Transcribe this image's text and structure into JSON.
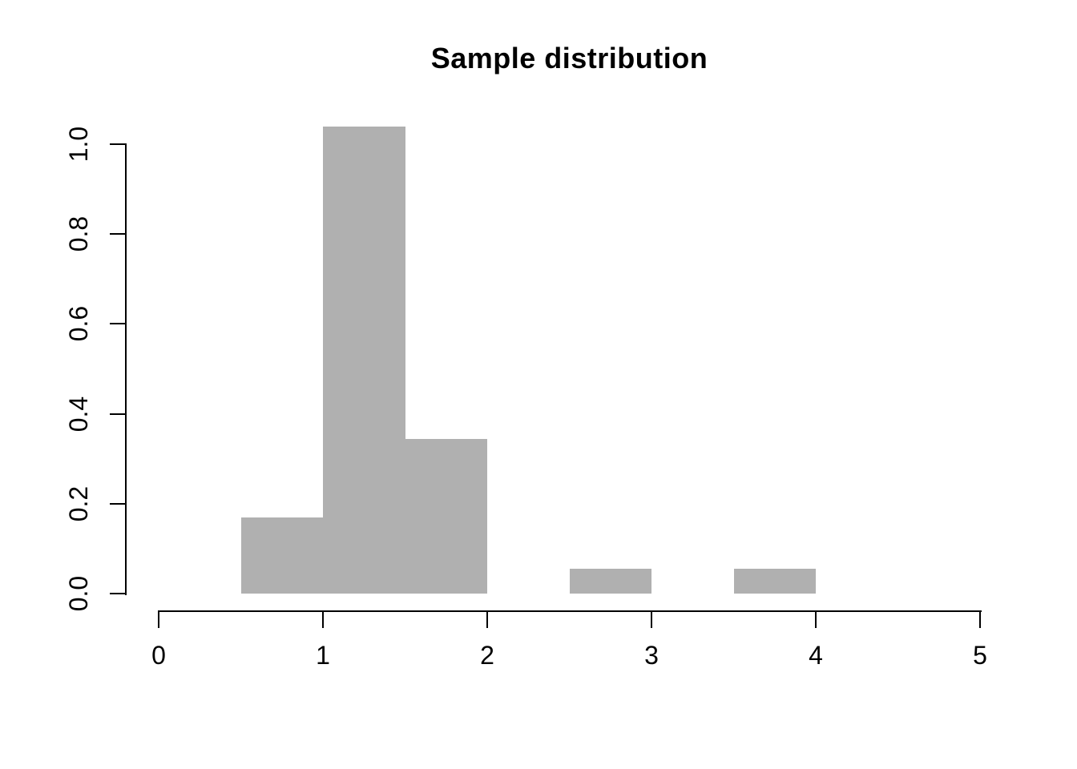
{
  "title": "Sample distribution",
  "colors": {
    "background": "#ffffff",
    "bar_fill": "#b0b0b0",
    "axis": "#000000",
    "text": "#000000"
  },
  "chart_data": {
    "type": "bar",
    "subtype": "histogram",
    "title": "Sample distribution",
    "xlabel": "",
    "ylabel": "",
    "xlim": [
      0,
      5
    ],
    "ylim": [
      0.0,
      1.0
    ],
    "grid": false,
    "legend": false,
    "x_tick_labels": [
      "0",
      "1",
      "2",
      "3",
      "4",
      "5"
    ],
    "x_tick_values": [
      0,
      1,
      2,
      3,
      4,
      5
    ],
    "y_tick_labels": [
      "0.0",
      "0.2",
      "0.4",
      "0.6",
      "0.8",
      "1.0"
    ],
    "y_tick_values": [
      0.0,
      0.2,
      0.4,
      0.6,
      0.8,
      1.0
    ],
    "bins": [
      {
        "x0": 0.5,
        "x1": 1.0,
        "density": 0.17
      },
      {
        "x0": 1.0,
        "x1": 1.5,
        "density": 1.04
      },
      {
        "x0": 1.5,
        "x1": 2.0,
        "density": 0.344
      },
      {
        "x0": 2.5,
        "x1": 3.0,
        "density": 0.055
      },
      {
        "x0": 3.5,
        "x1": 4.0,
        "density": 0.055
      }
    ]
  }
}
